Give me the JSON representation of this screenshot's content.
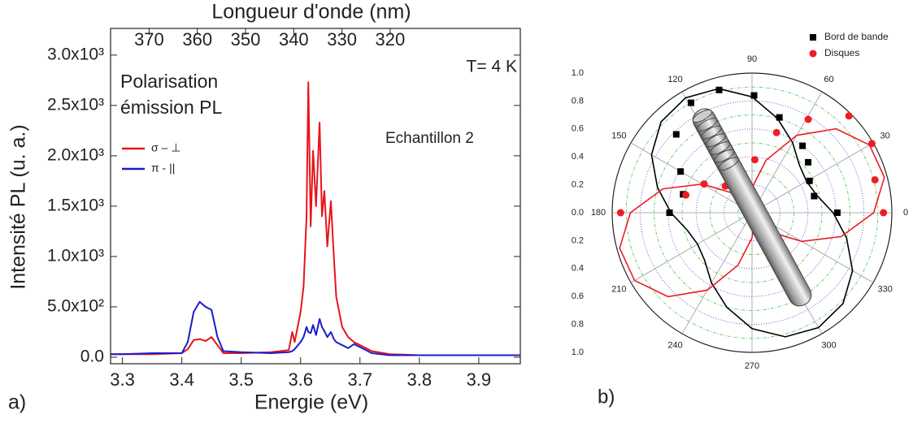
{
  "chart_data": [
    {
      "type": "line",
      "x2label": "Longueur d'onde  (nm)",
      "xlabel": "Energie (eV)",
      "ylabel": "Intensité PL (u. a.)",
      "panel_label": "a)",
      "annotation_lines": [
        "Polarisation",
        "émission PL"
      ],
      "temperature": "T= 4 K",
      "sample": "Echantillon 2",
      "legend": "left",
      "x": [
        3.28,
        3.3,
        3.35,
        3.4,
        3.41,
        3.42,
        3.43,
        3.44,
        3.45,
        3.46,
        3.47,
        3.5,
        3.55,
        3.58,
        3.586,
        3.59,
        3.6,
        3.605,
        3.61,
        3.613,
        3.617,
        3.621,
        3.626,
        3.632,
        3.636,
        3.64,
        3.645,
        3.651,
        3.656,
        3.66,
        3.67,
        3.68,
        3.69,
        3.7,
        3.72,
        3.75,
        3.8,
        3.85,
        3.9,
        3.97
      ],
      "series": [
        {
          "name": "σ – ⊥",
          "color": "#e8141b",
          "values": [
            30,
            30,
            30,
            40,
            80,
            170,
            180,
            160,
            200,
            120,
            40,
            40,
            50,
            70,
            250,
            150,
            450,
            700,
            1400,
            2730,
            1300,
            2050,
            1500,
            2330,
            1400,
            1650,
            1100,
            1550,
            1000,
            600,
            300,
            200,
            150,
            120,
            60,
            30,
            20,
            20,
            20,
            20
          ]
        },
        {
          "name": "π - ||",
          "color": "#1c1ccc",
          "values": [
            30,
            30,
            40,
            40,
            150,
            450,
            550,
            500,
            470,
            200,
            60,
            50,
            40,
            50,
            60,
            80,
            150,
            200,
            300,
            250,
            240,
            320,
            220,
            380,
            300,
            260,
            200,
            250,
            180,
            150,
            120,
            90,
            130,
            100,
            40,
            20,
            20,
            20,
            20,
            20
          ]
        }
      ],
      "xlim": [
        3.28,
        3.97
      ],
      "xticks": [
        3.3,
        3.4,
        3.5,
        3.6,
        3.7,
        3.8,
        3.9
      ],
      "x2lim": [
        378,
        293
      ],
      "x2ticks": [
        370,
        360,
        350,
        340,
        330,
        320
      ],
      "ylim": [
        -65,
        3265
      ],
      "yticks": [
        {
          "value": 0,
          "label": "0.0"
        },
        {
          "value": 500,
          "label": "5.0x10²"
        },
        {
          "value": 1000,
          "label": "1.0x10³"
        },
        {
          "value": 1500,
          "label": "1.5x10³"
        },
        {
          "value": 2000,
          "label": "2.0x10³"
        },
        {
          "value": 2500,
          "label": "2.5x10³"
        },
        {
          "value": 3000,
          "label": "3.0x10³"
        }
      ]
    },
    {
      "type": "polar",
      "panel_label": "b)",
      "legend": "upper right",
      "rlim": [
        0,
        1
      ],
      "rticks": [
        {
          "value": 0,
          "label": "0.0"
        },
        0.2,
        0.4,
        0.6,
        0.8,
        {
          "value": 1,
          "label": "1.0"
        }
      ],
      "thetaticks": [
        0,
        30,
        60,
        90,
        120,
        150,
        180,
        210,
        240,
        270,
        300,
        330
      ],
      "series": [
        {
          "name": "Bord de bande",
          "color": "#000000",
          "marker": "square",
          "theta": [
            0,
            15,
            29,
            42,
            53,
            74,
            89,
            105,
            119,
            134,
            150,
            165,
            180
          ],
          "r": [
            0.61,
            0.46,
            0.47,
            0.54,
            0.6,
            0.71,
            0.84,
            0.91,
            0.9,
            0.78,
            0.59,
            0.51,
            0.59
          ],
          "fit_theta": [
            0,
            15,
            30,
            45,
            60,
            75,
            90,
            105,
            120,
            135,
            150,
            165,
            180,
            195,
            210,
            225,
            240,
            255,
            270,
            285,
            300,
            315,
            330,
            345
          ],
          "fit_r": [
            0.58,
            0.48,
            0.45,
            0.48,
            0.58,
            0.7,
            0.83,
            0.92,
            0.95,
            0.92,
            0.83,
            0.7,
            0.58,
            0.48,
            0.45,
            0.48,
            0.58,
            0.7,
            0.83,
            0.92,
            0.95,
            0.92,
            0.83,
            0.7
          ]
        },
        {
          "name": "Disques",
          "color": "#ee1c24",
          "marker": "circle",
          "theta": [
            0,
            15,
            30,
            45,
            59,
            73,
            87,
            135,
            149,
            165,
            180
          ],
          "r": [
            0.94,
            0.91,
            0.99,
            0.98,
            0.78,
            0.6,
            0.38,
            0.27,
            0.4,
            0.49,
            0.94
          ],
          "fit_theta": [
            0,
            15,
            30,
            45,
            60,
            75,
            90,
            105,
            120,
            135,
            150,
            165,
            180,
            195,
            210,
            225,
            240,
            255,
            270,
            285,
            300,
            315,
            330,
            345
          ],
          "fit_r": [
            0.87,
            0.98,
            0.97,
            0.85,
            0.64,
            0.39,
            0.18,
            0.06,
            0.07,
            0.2,
            0.41,
            0.66,
            0.87,
            0.98,
            0.97,
            0.85,
            0.64,
            0.39,
            0.18,
            0.06,
            0.07,
            0.2,
            0.41,
            0.66
          ]
        }
      ]
    }
  ]
}
